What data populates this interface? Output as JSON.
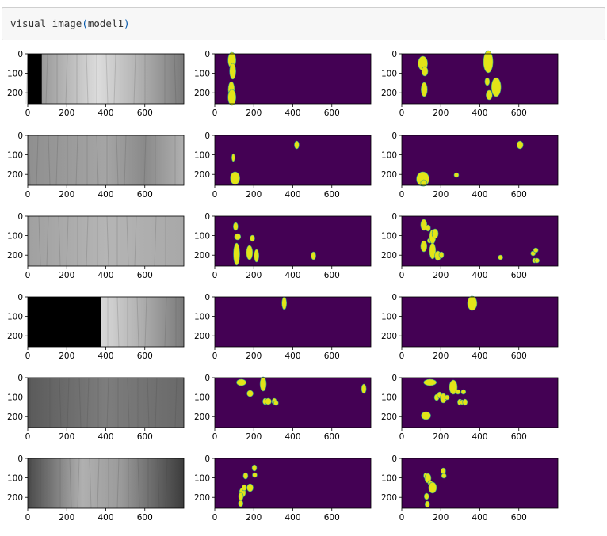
{
  "cell": {
    "fn": "visual_image",
    "arg": "model1",
    "open": "(",
    "close": ")"
  },
  "colors": {
    "mask_background": "#440154",
    "mask_foreground": "#e3e418",
    "mask_edge": "#2a9d8f"
  },
  "axes": {
    "x_ticks": [
      "0",
      "200",
      "400",
      "600"
    ],
    "y_ticks": [
      "0",
      "100",
      "200"
    ]
  },
  "rows": [
    {
      "image": {
        "black_cover_fraction": 0.09,
        "style": "bright-right"
      },
      "truth": [
        [
          88,
          8,
          5,
          10
        ],
        [
          92,
          22,
          4,
          10
        ],
        [
          85,
          45,
          4,
          10
        ],
        [
          88,
          55,
          5,
          10
        ]
      ],
      "prediction": [
        [
          108,
          12,
          6,
          9
        ],
        [
          118,
          22,
          4,
          6
        ],
        [
          115,
          45,
          4,
          9
        ],
        [
          443,
          10,
          6,
          14
        ],
        [
          438,
          35,
          3,
          5
        ],
        [
          448,
          52,
          4,
          6
        ],
        [
          484,
          42,
          6,
          12
        ]
      ]
    },
    {
      "image": {
        "black_cover_fraction": 0.0,
        "style": "uniform"
      },
      "truth": [
        [
          95,
          28,
          2,
          5
        ],
        [
          104,
          54,
          6,
          8
        ],
        [
          420,
          12,
          3,
          5
        ]
      ],
      "prediction": [
        [
          108,
          55,
          8,
          9
        ],
        [
          113,
          60,
          4,
          4
        ],
        [
          280,
          50,
          3,
          3
        ],
        [
          606,
          12,
          4,
          5
        ]
      ]
    },
    {
      "image": {
        "black_cover_fraction": 0.0,
        "style": "uniform-light"
      },
      "truth": [
        [
          107,
          13,
          3,
          5
        ],
        [
          112,
          48,
          4,
          14
        ],
        [
          117,
          26,
          4,
          4
        ],
        [
          178,
          46,
          4,
          9
        ],
        [
          193,
          28,
          3,
          4
        ],
        [
          214,
          50,
          3,
          8
        ],
        [
          506,
          50,
          3,
          5
        ]
      ],
      "prediction": [
        [
          113,
          11,
          4,
          7
        ],
        [
          113,
          38,
          4,
          7
        ],
        [
          135,
          15,
          3,
          4
        ],
        [
          143,
          31,
          3,
          3
        ],
        [
          158,
          26,
          4,
          9
        ],
        [
          171,
          22,
          4,
          6
        ],
        [
          158,
          44,
          4,
          10
        ],
        [
          185,
          50,
          4,
          6
        ],
        [
          203,
          49,
          3,
          4
        ],
        [
          506,
          52,
          3,
          3
        ],
        [
          673,
          47,
          3,
          3
        ],
        [
          687,
          43,
          3,
          3
        ],
        [
          681,
          56,
          3,
          3
        ],
        [
          693,
          56,
          3,
          3
        ]
      ]
    },
    {
      "image": {
        "black_cover_fraction": 0.47,
        "style": "bright-right"
      },
      "truth": [
        [
          356,
          8,
          3,
          8
        ]
      ],
      "prediction": [
        [
          361,
          8,
          6,
          9
        ]
      ]
    },
    {
      "image": {
        "black_cover_fraction": 0.0,
        "style": "dark"
      },
      "truth": [
        [
          136,
          6,
          6,
          4
        ],
        [
          181,
          20,
          4,
          4
        ],
        [
          248,
          8,
          4,
          9
        ],
        [
          258,
          30,
          3,
          4
        ],
        [
          274,
          30,
          4,
          4
        ],
        [
          305,
          30,
          3,
          4
        ],
        [
          314,
          32,
          3,
          3
        ],
        [
          764,
          14,
          3,
          6
        ]
      ],
      "prediction": [
        [
          145,
          6,
          8,
          4
        ],
        [
          179,
          25,
          3,
          4
        ],
        [
          194,
          22,
          3,
          4
        ],
        [
          213,
          26,
          4,
          6
        ],
        [
          232,
          25,
          3,
          3
        ],
        [
          264,
          12,
          5,
          9
        ],
        [
          288,
          18,
          3,
          3
        ],
        [
          298,
          31,
          3,
          4
        ],
        [
          309,
          31,
          3,
          3
        ],
        [
          316,
          18,
          3,
          3
        ],
        [
          324,
          31,
          3,
          4
        ],
        [
          124,
          48,
          6,
          5
        ]
      ]
    },
    {
      "image": {
        "black_cover_fraction": 0.0,
        "style": "vignette"
      },
      "truth": [
        [
          158,
          22,
          3,
          4
        ],
        [
          142,
          43,
          4,
          6
        ],
        [
          151,
          37,
          3,
          4
        ],
        [
          134,
          48,
          3,
          5
        ],
        [
          133,
          57,
          3,
          4
        ],
        [
          181,
          37,
          4,
          5
        ],
        [
          203,
          12,
          3,
          4
        ],
        [
          205,
          21,
          3,
          3
        ]
      ],
      "prediction": [
        [
          124,
          22,
          3,
          4
        ],
        [
          134,
          25,
          4,
          6
        ],
        [
          146,
          31,
          3,
          3
        ],
        [
          158,
          37,
          5,
          7
        ],
        [
          127,
          48,
          3,
          4
        ],
        [
          131,
          58,
          3,
          4
        ],
        [
          213,
          16,
          3,
          4
        ],
        [
          216,
          22,
          3,
          3
        ]
      ]
    }
  ]
}
